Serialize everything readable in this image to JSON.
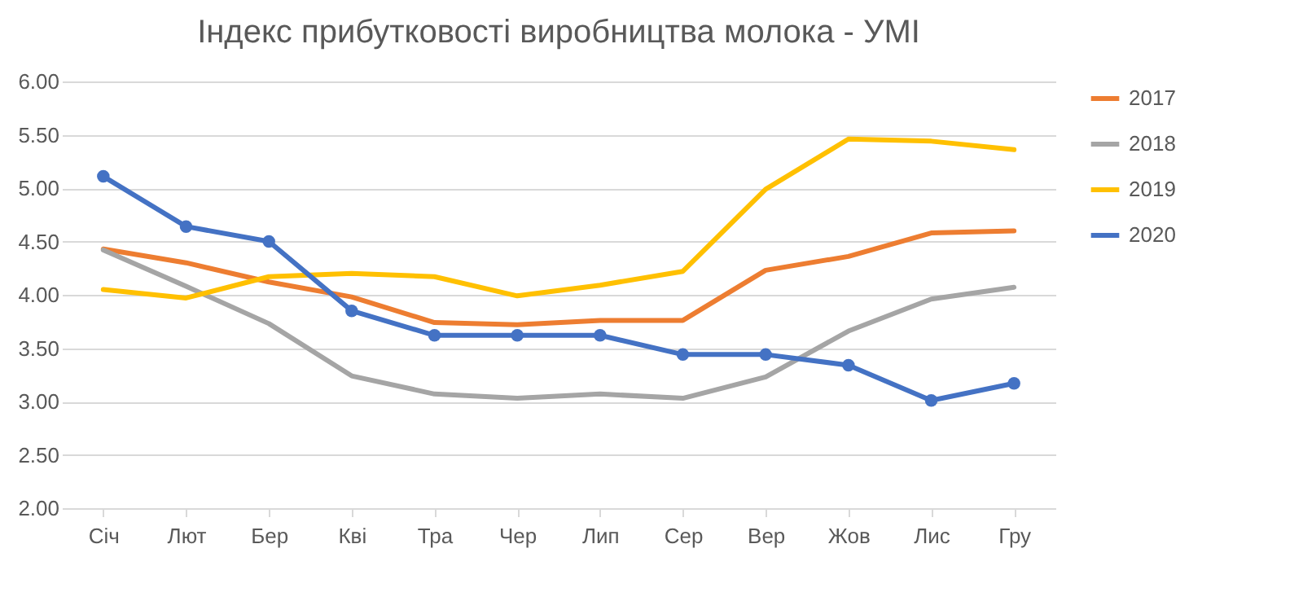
{
  "chart_data": {
    "type": "line",
    "title": "Індекс прибутковості виробництва молока - УМІ",
    "categories": [
      "Січ",
      "Лют",
      "Бер",
      "Кві",
      "Тра",
      "Чер",
      "Лип",
      "Сер",
      "Вер",
      "Жов",
      "Лис",
      "Гру"
    ],
    "series": [
      {
        "name": "2017",
        "color": "#ed7d31",
        "marker": "none",
        "values": [
          4.43,
          4.3,
          4.12,
          3.98,
          3.74,
          3.72,
          3.76,
          3.76,
          4.23,
          4.36,
          4.58,
          4.6
        ]
      },
      {
        "name": "2018",
        "color": "#a5a5a5",
        "marker": "none",
        "values": [
          4.42,
          4.08,
          3.73,
          3.24,
          3.07,
          3.03,
          3.07,
          3.03,
          3.23,
          3.66,
          3.96,
          4.07
        ]
      },
      {
        "name": "2019",
        "color": "#ffc000",
        "marker": "none",
        "values": [
          4.05,
          3.97,
          4.17,
          4.2,
          4.17,
          3.99,
          4.09,
          4.22,
          4.99,
          5.46,
          5.44,
          5.36
        ]
      },
      {
        "name": "2020",
        "color": "#4472c4",
        "marker": "circle",
        "values": [
          5.11,
          4.64,
          4.5,
          3.85,
          3.62,
          3.62,
          3.62,
          3.44,
          3.44,
          3.34,
          3.01,
          3.17
        ]
      }
    ],
    "ylim": [
      2,
      6
    ],
    "yticks": [
      {
        "value": 2,
        "label": "2.00"
      },
      {
        "value": 2.5,
        "label": "2.50"
      },
      {
        "value": 3,
        "label": "3.00"
      },
      {
        "value": 3.5,
        "label": "3.50"
      },
      {
        "value": 4,
        "label": "4.00"
      },
      {
        "value": 4.5,
        "label": "4.50"
      },
      {
        "value": 5,
        "label": "5.00"
      },
      {
        "value": 5.5,
        "label": "5.50"
      },
      {
        "value": 6,
        "label": "6.00"
      }
    ],
    "grid": "y",
    "legend": "right"
  }
}
